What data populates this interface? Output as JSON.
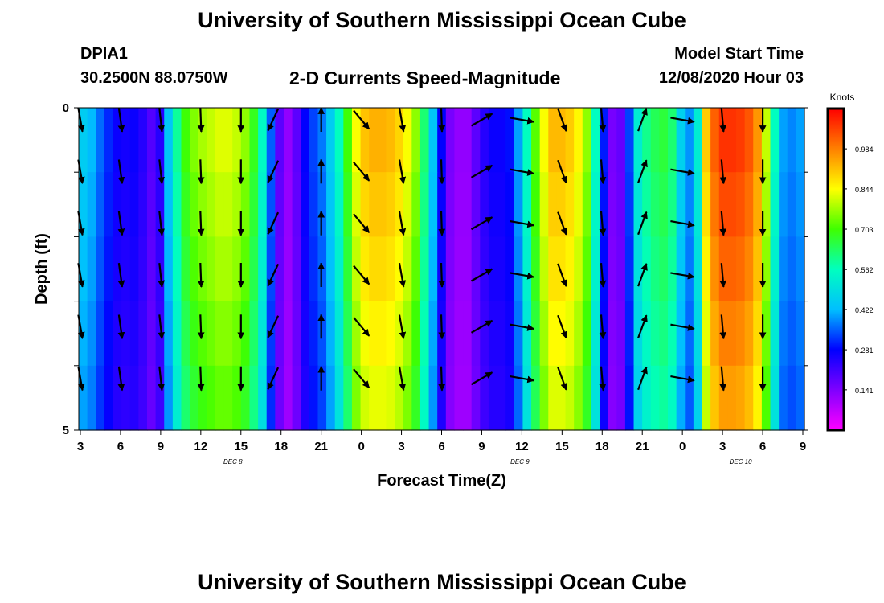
{
  "header": {
    "title": "University of Southern Mississippi Ocean Cube",
    "station_id": "DPIA1",
    "station_coords": "30.2500N 88.0750W",
    "plot_title": "2-D Currents Speed-Magnitude",
    "start_label": "Model Start Time",
    "start_value": "12/08/2020 Hour 03"
  },
  "footer": {
    "title": "University of Southern Mississippi Ocean Cube"
  },
  "chart_data": {
    "type": "heatmap",
    "title": "2-D Currents Speed-Magnitude",
    "xlabel": "Forecast Time(Z)",
    "ylabel": "Depth (ft)",
    "x_tick_labels": [
      "3",
      "6",
      "9",
      "12",
      "15",
      "18",
      "21",
      "0",
      "3",
      "6",
      "9",
      "12",
      "15",
      "18",
      "21",
      "0",
      "3",
      "6",
      "9"
    ],
    "x_date_labels": [
      {
        "label": "DEC  8",
        "after_tick": 3.8
      },
      {
        "label": "DEC  9",
        "after_tick": 10.95
      },
      {
        "label": "DEC 10",
        "after_tick": 16.45
      }
    ],
    "y_tick_labels": [
      "0",
      "5"
    ],
    "ylim": [
      0,
      5
    ],
    "colorbar": {
      "label": "Knots",
      "ticks": [
        "0.141",
        "0.281",
        "0.422",
        "0.562",
        "0.703",
        "0.844",
        "0.984"
      ],
      "range": [
        0.0,
        1.125
      ]
    },
    "speed_profile_knots": [
      0.45,
      0.42,
      0.36,
      0.31,
      0.27,
      0.26,
      0.27,
      0.24,
      0.19,
      0.24,
      0.44,
      0.59,
      0.7,
      0.75,
      0.78,
      0.8,
      0.82,
      0.82,
      0.8,
      0.76,
      0.68,
      0.55,
      0.35,
      0.18,
      0.12,
      0.18,
      0.28,
      0.33,
      0.37,
      0.45,
      0.56,
      0.7,
      0.84,
      0.91,
      0.93,
      0.93,
      0.92,
      0.89,
      0.84,
      0.76,
      0.62,
      0.44,
      0.28,
      0.15,
      0.12,
      0.12,
      0.18,
      0.24,
      0.27,
      0.27,
      0.29,
      0.4,
      0.56,
      0.72,
      0.84,
      0.92,
      0.92,
      0.9,
      0.85,
      0.76,
      0.56,
      0.3,
      0.15,
      0.17,
      0.33,
      0.52,
      0.6,
      0.64,
      0.66,
      0.62,
      0.46,
      0.39,
      0.52,
      0.9,
      1.02,
      1.07,
      1.07,
      1.06,
      1.03,
      0.96,
      0.8,
      0.56,
      0.4,
      0.38,
      0.4
    ],
    "vector_directions_deg": [
      {
        "x_tick": 0.0,
        "dir": 170
      },
      {
        "x_tick": 1.0,
        "dir": 172
      },
      {
        "x_tick": 2.0,
        "dir": 174
      },
      {
        "x_tick": 3.0,
        "dir": 178
      },
      {
        "x_tick": 4.0,
        "dir": 180
      },
      {
        "x_tick": 4.8,
        "dir": 205
      },
      {
        "x_tick": 6.0,
        "dir": 0
      },
      {
        "x_tick": 7.0,
        "dir": 140
      },
      {
        "x_tick": 8.0,
        "dir": 170
      },
      {
        "x_tick": 9.0,
        "dir": 178
      },
      {
        "x_tick": 10.0,
        "dir": 60
      },
      {
        "x_tick": 11.0,
        "dir": 100
      },
      {
        "x_tick": 12.0,
        "dir": 160
      },
      {
        "x_tick": 13.0,
        "dir": 175
      },
      {
        "x_tick": 14.0,
        "dir": 20
      },
      {
        "x_tick": 15.0,
        "dir": 100
      },
      {
        "x_tick": 16.0,
        "dir": 175
      },
      {
        "x_tick": 17.0,
        "dir": 180
      }
    ]
  }
}
